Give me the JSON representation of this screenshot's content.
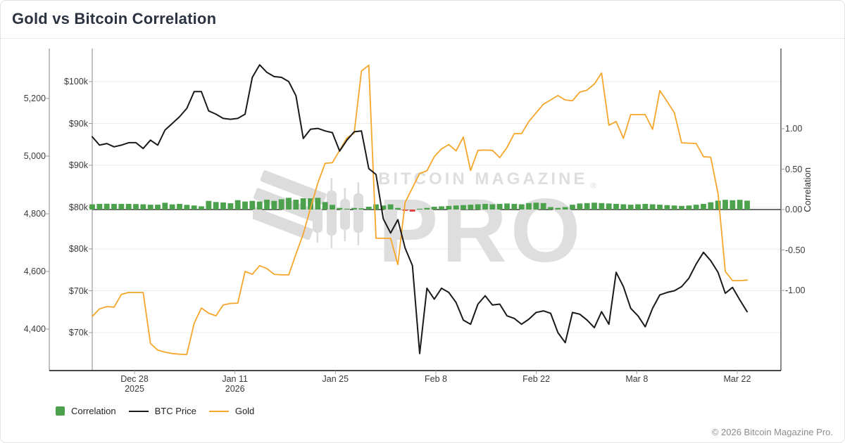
{
  "title": "Gold vs Bitcoin Correlation",
  "footer": "© 2026 Bitcoin Magazine Pro.",
  "watermark": {
    "brand": "BITCOIN MAGAZINE",
    "registered": "®",
    "pro": "PRO"
  },
  "legend": {
    "items": [
      {
        "label": "Correlation",
        "swatch": "square",
        "color": "#4ca24c"
      },
      {
        "label": "BTC Price",
        "swatch": "line",
        "color": "#1a1a1a"
      },
      {
        "label": "Gold",
        "swatch": "line",
        "color": "#f5a62b"
      }
    ]
  },
  "colors": {
    "correlation_positive": "#4ca24c",
    "correlation_negative": "#df3d3d",
    "btc_line": "#1a1a1a",
    "gold_line": "#f5a62b",
    "grid": "#ececec",
    "axis": "#999999",
    "zero_line": "#3c3c3c",
    "bottom_axis": "#2d2d2d",
    "watermark": "#dedede"
  },
  "chart_data": {
    "type": "mixed",
    "title": "Gold vs Bitcoin Correlation",
    "x": {
      "start_date": "Dec 22, 2025",
      "end_date": "Mar 22, 2026",
      "frequency": "daily",
      "tick_labels": [
        {
          "lines": [
            "Dec 28",
            "2025"
          ]
        },
        {
          "lines": [
            "Jan 11",
            "2026"
          ]
        },
        {
          "lines": [
            "Jan 25"
          ]
        },
        {
          "lines": [
            "Feb 8"
          ]
        },
        {
          "lines": [
            "Feb 22"
          ]
        },
        {
          "lines": [
            "Mar 8"
          ]
        },
        {
          "lines": [
            "Mar 22"
          ]
        }
      ]
    },
    "axes": {
      "gold_left": {
        "tick_labels": [
          "5,200",
          "5,000",
          "4,800",
          "4,600",
          "4,400"
        ],
        "tick_values": [
          5200,
          5000,
          4800,
          4600,
          4400
        ]
      },
      "btc_left": {
        "tick_labels": [
          "$100k",
          "$90k",
          "$90k",
          "$80k",
          "$80k",
          "$70k",
          "$70k"
        ],
        "tick_values_k": [
          100,
          95,
          90,
          85,
          80,
          75,
          70
        ]
      },
      "correlation_right": {
        "label": "Correlation",
        "tick_labels": [
          "1.00",
          "0.50",
          "0.00",
          "-0.50",
          "-1.00"
        ],
        "tick_values": [
          1,
          0.5,
          0,
          -0.5,
          -1
        ]
      }
    },
    "series": [
      {
        "name": "Correlation",
        "type": "bar",
        "values": [
          0.065,
          0.07,
          0.072,
          0.07,
          0.07,
          0.07,
          0.068,
          0.065,
          0.06,
          0.06,
          0.084,
          0.064,
          0.07,
          0.058,
          0.05,
          0.04,
          0.107,
          0.093,
          0.088,
          0.078,
          0.116,
          0.099,
          0.107,
          0.099,
          0.122,
          0.107,
          0.127,
          0.145,
          0.122,
          0.139,
          0.139,
          0.145,
          0.093,
          0.058,
          0.02,
          0.01,
          0.02,
          0.015,
          0.035,
          0.064,
          0.05,
          0.064,
          0.02,
          -0.015,
          -0.025,
          0.01,
          0.02,
          0.035,
          0.04,
          0.045,
          0.05,
          0.055,
          0.06,
          0.065,
          0.07,
          0.065,
          0.07,
          0.075,
          0.07,
          0.065,
          0.08,
          0.085,
          0.08,
          0.03,
          0.02,
          0.03,
          0.06,
          0.075,
          0.08,
          0.085,
          0.08,
          0.075,
          0.07,
          0.065,
          0.06,
          0.065,
          0.07,
          0.065,
          0.06,
          0.055,
          0.05,
          0.045,
          0.05,
          0.06,
          0.07,
          0.09,
          0.11,
          0.12,
          0.115,
          0.12,
          0.11
        ]
      },
      {
        "name": "BTC Price",
        "type": "line",
        "unit": "USD thousands",
        "values": [
          93.4,
          92.4,
          92.6,
          92.2,
          92.4,
          92.7,
          92.7,
          92.0,
          93.0,
          92.4,
          94.2,
          95.0,
          95.8,
          96.8,
          98.8,
          98.8,
          96.5,
          96.1,
          95.6,
          95.5,
          95.6,
          96.1,
          100.5,
          102.0,
          101.1,
          100.6,
          100.5,
          100.0,
          98.3,
          93.2,
          94.3,
          94.4,
          94.1,
          93.9,
          91.7,
          93.0,
          94.0,
          94.1,
          89.6,
          88.9,
          83.6,
          81.9,
          83.5,
          80.1,
          78.0,
          67.5,
          75.3,
          74.0,
          75.3,
          74.8,
          73.6,
          71.5,
          71.0,
          73.4,
          74.4,
          73.3,
          73.4,
          72.0,
          71.7,
          71.0,
          71.6,
          72.4,
          72.6,
          72.3,
          70.0,
          68.8,
          72.4,
          72.2,
          71.5,
          70.6,
          72.5,
          71.0,
          77.2,
          75.5,
          72.9,
          72.0,
          70.7,
          72.9,
          74.5,
          74.8,
          75.0,
          75.5,
          76.5,
          78.2,
          79.6,
          78.6,
          77.2,
          74.7,
          75.4,
          73.9,
          72.5
        ]
      },
      {
        "name": "Gold",
        "type": "line",
        "unit": "USD per ounce",
        "values": [
          4444,
          4470,
          4478,
          4476,
          4520,
          4527,
          4527,
          4527,
          4350,
          4327,
          4320,
          4315,
          4313,
          4312,
          4420,
          4473,
          4455,
          4446,
          4484,
          4489,
          4490,
          4600,
          4590,
          4620,
          4610,
          4590,
          4588,
          4588,
          4660,
          4730,
          4820,
          4906,
          4975,
          4977,
          5020,
          5063,
          5080,
          5295,
          5315,
          4715,
          4715,
          4715,
          4624,
          4839,
          4890,
          4940,
          4949,
          4998,
          5025,
          5040,
          5018,
          5066,
          4950,
          5020,
          5021,
          5020,
          4995,
          5030,
          5078,
          5078,
          5120,
          5150,
          5180,
          5195,
          5210,
          5195,
          5192,
          5222,
          5229,
          5250,
          5288,
          5107,
          5120,
          5062,
          5144,
          5144,
          5144,
          5093,
          5227,
          5190,
          5150,
          5046,
          5045,
          5044,
          4998,
          4996,
          4870,
          4600,
          4568,
          4568,
          4570
        ]
      }
    ]
  }
}
